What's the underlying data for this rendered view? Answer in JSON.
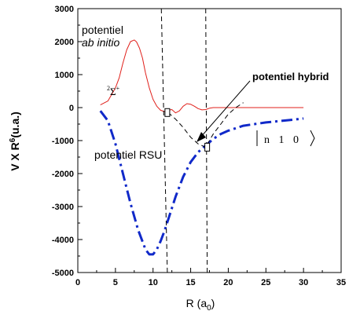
{
  "chart_data": {
    "type": "line",
    "xlabel": "R (a",
    "xlabel_sub": "0",
    "xlabel_close": ")",
    "ylabel": "V X R",
    "ylabel_sup": "6",
    "ylabel_rest": "(u.a.)",
    "xlim": [
      0,
      35
    ],
    "ylim": [
      -5000,
      3000
    ],
    "x_ticks": [
      "0",
      "5",
      "10",
      "15",
      "20",
      "25",
      "30",
      "35"
    ],
    "y_ticks": [
      "3000",
      "2000",
      "1000",
      "0",
      "-1000",
      "-2000",
      "-3000",
      "-4000",
      "-5000"
    ],
    "grid": false,
    "series": [
      {
        "name": "potentiel ab initio",
        "color": "#e0201b",
        "style": "solid",
        "x": [
          3,
          4,
          5,
          5.5,
          6,
          6.5,
          7,
          7.5,
          7.8,
          8.2,
          8.6,
          9,
          9.5,
          10,
          10.5,
          11,
          11.5,
          12,
          12.5,
          13,
          13.5,
          14,
          14.5,
          15,
          15.5,
          16,
          16.5,
          17,
          17.5,
          18,
          19,
          20,
          22,
          25,
          28,
          30
        ],
        "y": [
          80,
          200,
          600,
          900,
          1350,
          1750,
          2000,
          2050,
          1990,
          1800,
          1500,
          1050,
          600,
          250,
          40,
          -80,
          -120,
          -80,
          -60,
          -160,
          -100,
          40,
          120,
          100,
          40,
          -30,
          -70,
          -60,
          -20,
          0,
          0,
          0,
          0,
          0,
          0,
          0
        ]
      },
      {
        "name": "potentiel RSU",
        "color": "#1029c9",
        "style": "dash-dot",
        "x": [
          3,
          4,
          5,
          6,
          7,
          8,
          9,
          9.5,
          10,
          10.5,
          11,
          11.5,
          12,
          13,
          14,
          15,
          16,
          17,
          18,
          19,
          20,
          22,
          25,
          28,
          30
        ],
        "y": [
          -100,
          -400,
          -1100,
          -2000,
          -2900,
          -3700,
          -4300,
          -4450,
          -4450,
          -4300,
          -4050,
          -3750,
          -3400,
          -2700,
          -2100,
          -1650,
          -1350,
          -1150,
          -950,
          -800,
          -700,
          -550,
          -450,
          -380,
          -330
        ]
      },
      {
        "name": "potentiel hybrid",
        "color": "#000000",
        "style": "dashed",
        "x": [
          12,
          13,
          14,
          15,
          16,
          17,
          18,
          19,
          20,
          21,
          22
        ],
        "y": [
          -150,
          -350,
          -600,
          -900,
          -1100,
          -1200,
          -800,
          -500,
          -200,
          0,
          150
        ]
      }
    ],
    "vertical_lines": [
      {
        "x_top": 11.1,
        "x_bottom": 11.9,
        "style": "dashed"
      },
      {
        "x_top": 17.0,
        "x_bottom": 17.2,
        "style": "dashed"
      }
    ],
    "markers": [
      {
        "x": 11.9,
        "y": -150
      },
      {
        "x": 17.2,
        "y": -1200
      }
    ],
    "annotations": {
      "ab_initio_line1": "potentiel",
      "ab_initio_line2": "ab initio",
      "sigma_sup": "2",
      "sigma": "Σ",
      "sigma_plus": "+",
      "hybrid": "potentiel hybrid",
      "rsu": "potentiel RSU",
      "ket": "n 1 0"
    }
  }
}
